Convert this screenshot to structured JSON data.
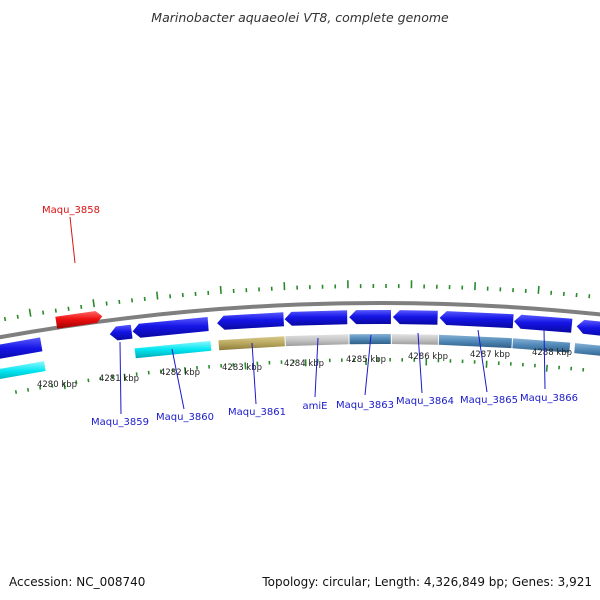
{
  "title": "Marinobacter aquaeolei VT8, complete genome",
  "footer": {
    "accession": "Accession: NC_008740",
    "topology": "Topology: circular; Length: 4,326,849 bp; Genes: 3,921"
  },
  "colors": {
    "backbone": "#7f7f7f",
    "gene_blue": "#1515e6",
    "gene_red": "#ee1111",
    "tick_green": "#2a8a2a",
    "label_blue": "#1a1acc",
    "label_red": "#dd1111",
    "track_cyan": "#00e5f0",
    "track_olive": "#b9a85e",
    "track_gray": "#c4c4c4",
    "track_steel": "#4f87b6"
  },
  "scale_ticks": [
    "4280 kbp",
    "4281 kbp",
    "4282 kbp",
    "4283 kbp",
    "4284 kbp",
    "4285 kbp",
    "4286 kbp",
    "4287 kbp",
    "4288 kbp"
  ],
  "genes": [
    {
      "label": "Maqu_3858",
      "color": "red"
    },
    {
      "label": "Maqu_3859",
      "color": "blue"
    },
    {
      "label": "Maqu_3860",
      "color": "blue"
    },
    {
      "label": "Maqu_3861",
      "color": "blue"
    },
    {
      "label": "amiE",
      "color": "blue"
    },
    {
      "label": "Maqu_3863",
      "color": "blue"
    },
    {
      "label": "Maqu_3864",
      "color": "blue"
    },
    {
      "label": "Maqu_3865",
      "color": "blue"
    },
    {
      "label": "Maqu_3866",
      "color": "blue"
    }
  ]
}
